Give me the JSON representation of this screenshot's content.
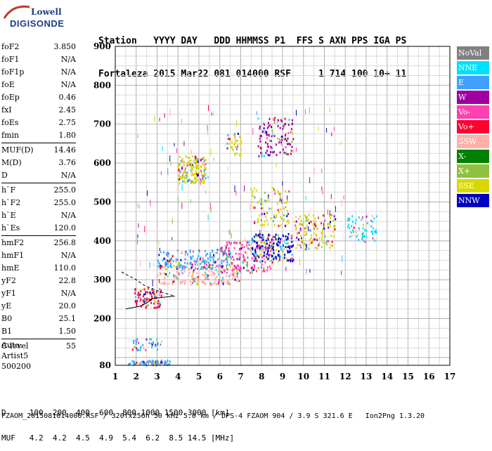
{
  "logo": {
    "line1": "Lowell",
    "line2": "DIGISONDE"
  },
  "header": {
    "line1": "Station   YYYY DAY   DDD HHMMSS P1  FFS S AXN PPS IGA PS",
    "line2": "Fortaleza 2015 Mar22 081 014000 RSF     1 714 100 10+ 11"
  },
  "params": {
    "group1": [
      {
        "name": "foF2",
        "value": "3.850"
      },
      {
        "name": "foF1",
        "value": "N/A"
      },
      {
        "name": "foF1p",
        "value": "N/A"
      },
      {
        "name": "foE",
        "value": "N/A"
      },
      {
        "name": "foEp",
        "value": "0.46"
      },
      {
        "name": "fxI",
        "value": "2.45"
      },
      {
        "name": "foEs",
        "value": "2.75"
      },
      {
        "name": "fmin",
        "value": "1.80"
      }
    ],
    "group2": [
      {
        "name": "MUF(D)",
        "value": "14.46"
      },
      {
        "name": "M(D)",
        "value": "3.76"
      },
      {
        "name": "D",
        "value": "N/A"
      }
    ],
    "group3": [
      {
        "name": "h`F",
        "value": "255.0"
      },
      {
        "name": "h`F2",
        "value": "255.0"
      },
      {
        "name": "h`E",
        "value": "N/A"
      },
      {
        "name": "h`Es",
        "value": "120.0"
      }
    ],
    "group4": [
      {
        "name": "hmF2",
        "value": "256.8"
      },
      {
        "name": "hmF1",
        "value": "N/A"
      },
      {
        "name": "hmE",
        "value": "110.0"
      },
      {
        "name": "yF2",
        "value": "22.8"
      },
      {
        "name": "yF1",
        "value": "N/A"
      },
      {
        "name": "yE",
        "value": "20.0"
      },
      {
        "name": "B0",
        "value": "25.1"
      },
      {
        "name": "B1",
        "value": "1.50"
      }
    ],
    "group5": [
      {
        "name": "C-level",
        "value": "55"
      }
    ]
  },
  "auto": {
    "line1": "Auto:",
    "line2": "Artist5",
    "line3": "500200"
  },
  "legend": [
    {
      "label": "NoVal",
      "color": "#808080"
    },
    {
      "label": "NNE",
      "color": "#00e0ff"
    },
    {
      "label": "E",
      "color": "#3fa0ff"
    },
    {
      "label": "W",
      "color": "#a000a0"
    },
    {
      "label": "Vo-",
      "color": "#ff40b0"
    },
    {
      "label": "Vo+",
      "color": "#ff0030"
    },
    {
      "label": "SSW",
      "color": "#ffb0a8"
    },
    {
      "label": "X-",
      "color": "#008000"
    },
    {
      "label": "X+",
      "color": "#90c040"
    },
    {
      "label": "SSE",
      "color": "#d8d800"
    },
    {
      "label": "NNW",
      "color": "#0000c0"
    }
  ],
  "bottom": {
    "line1": "D     100  200  400  600  800 1000 1500 3000 [km]",
    "line2": "MUF   4.2  4.2  4.5  4.9  5.4  6.2  8.5 14.5 [MHz]"
  },
  "footer": "FZAOM_2015081014000.RSF / 320fx256h 50 kHz 5.0 km / DPS-4 FZAOM 904 / 3.9 S 321.6 E   Ion2Png 1.3.20",
  "chart_data": {
    "type": "scatter",
    "xlim": [
      1,
      17
    ],
    "ylim": [
      80,
      900
    ],
    "x_ticks": [
      "1",
      "2",
      "3",
      "4",
      "5",
      "6",
      "7",
      "8",
      "9",
      "10",
      "11",
      "12",
      "13",
      "14",
      "15",
      "16",
      "17"
    ],
    "y_ticks": [
      "80",
      "200",
      "300",
      "400",
      "500",
      "600",
      "700",
      "800",
      "900"
    ],
    "grid": true,
    "clusters": [
      {
        "name": "Es low",
        "x": [
          1.6,
          3.6
        ],
        "y": [
          82,
          95
        ],
        "color": "#3fa0ff",
        "n": 70
      },
      {
        "name": "Es low2",
        "x": [
          1.8,
          3.2
        ],
        "y": [
          120,
          150
        ],
        "color": "#3fa0ff",
        "n": 40
      },
      {
        "name": "F trace",
        "x": [
          1.9,
          3.2
        ],
        "y": [
          230,
          280
        ],
        "color": "#ff0030",
        "n": 90
      },
      {
        "name": "F main",
        "x": [
          3.0,
          7.0
        ],
        "y": [
          290,
          340
        ],
        "color": "#ffb0a8",
        "n": 220
      },
      {
        "name": "F upper",
        "x": [
          3.0,
          6.5
        ],
        "y": [
          330,
          380
        ],
        "color": "#3fa0ff",
        "n": 180
      },
      {
        "name": "F spread",
        "x": [
          6.0,
          8.5
        ],
        "y": [
          320,
          400
        ],
        "color": "#ff40b0",
        "n": 160
      },
      {
        "name": "F far",
        "x": [
          7.5,
          9.5
        ],
        "y": [
          350,
          420
        ],
        "color": "#0000c0",
        "n": 160
      },
      {
        "name": "F far2",
        "x": [
          9.5,
          11.5
        ],
        "y": [
          380,
          470
        ],
        "color": "#d8d800",
        "n": 150
      },
      {
        "name": "F outer",
        "x": [
          12.0,
          13.5
        ],
        "y": [
          400,
          470
        ],
        "color": "#00e0ff",
        "n": 60
      },
      {
        "name": "2F",
        "x": [
          4.0,
          5.3
        ],
        "y": [
          550,
          620
        ],
        "color": "#d8d800",
        "n": 180
      },
      {
        "name": "2F far",
        "x": [
          7.8,
          9.5
        ],
        "y": [
          620,
          720
        ],
        "color": "#a000a0",
        "n": 120
      },
      {
        "name": "2F mid",
        "x": [
          6.3,
          7.0
        ],
        "y": [
          620,
          680
        ],
        "color": "#d8d800",
        "n": 40
      },
      {
        "name": "F high",
        "x": [
          7.5,
          9.3
        ],
        "y": [
          440,
          540
        ],
        "color": "#d8d800",
        "n": 100
      }
    ]
  }
}
